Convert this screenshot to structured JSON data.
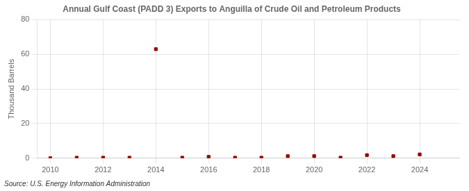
{
  "chart_data": {
    "type": "scatter",
    "title": "Annual Gulf Coast (PADD 3) Exports to Anguilla of Crude Oil and Petroleum Products",
    "y_label": "Thousand Barrels",
    "annotations": [
      "Source: U.S. Energy Information Administration"
    ],
    "x": [
      2010,
      2011,
      2012,
      2013,
      2014,
      2015,
      2016,
      2017,
      2018,
      2019,
      2020,
      2021,
      2022,
      2023,
      2024
    ],
    "values": [
      0,
      0.3,
      0.3,
      0.3,
      63,
      0.3,
      0.8,
      0.3,
      0.3,
      1.2,
      1.2,
      0.3,
      1.8,
      1.2,
      2.2
    ],
    "color": "#990000",
    "marker": "square",
    "xlim": [
      2009.5,
      2025.5
    ],
    "xticks": [
      2010,
      2012,
      2014,
      2016,
      2018,
      2020,
      2022,
      2024
    ],
    "ylim": [
      0,
      80
    ],
    "yticks": [
      0,
      20,
      40,
      60,
      80
    ],
    "grid": true
  }
}
